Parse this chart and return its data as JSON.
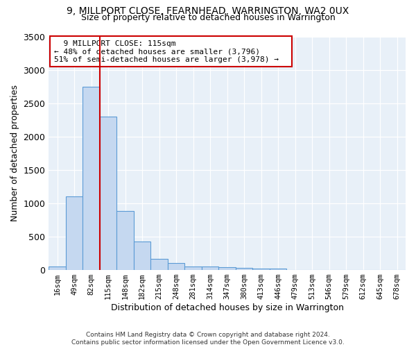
{
  "title1": "9, MILLPORT CLOSE, FEARNHEAD, WARRINGTON, WA2 0UX",
  "title2": "Size of property relative to detached houses in Warrington",
  "xlabel": "Distribution of detached houses by size in Warrington",
  "ylabel": "Number of detached properties",
  "categories": [
    "16sqm",
    "49sqm",
    "82sqm",
    "115sqm",
    "148sqm",
    "182sqm",
    "215sqm",
    "248sqm",
    "281sqm",
    "314sqm",
    "347sqm",
    "380sqm",
    "413sqm",
    "446sqm",
    "479sqm",
    "513sqm",
    "546sqm",
    "579sqm",
    "612sqm",
    "645sqm",
    "678sqm"
  ],
  "values": [
    50,
    1100,
    2750,
    2300,
    880,
    430,
    170,
    100,
    55,
    50,
    40,
    30,
    25,
    20,
    5,
    5,
    4,
    3,
    3,
    3,
    3
  ],
  "bar_color": "#c5d8f0",
  "bar_edge_color": "#5b9bd5",
  "red_line_x": 2.5,
  "annotation_title": "9 MILLPORT CLOSE: 115sqm",
  "annotation_line1": "← 48% of detached houses are smaller (3,796)",
  "annotation_line2": "51% of semi-detached houses are larger (3,978) →",
  "vline_color": "#cc0000",
  "annotation_box_edge": "#cc0000",
  "background_color": "#e8f0f8",
  "footer1": "Contains HM Land Registry data © Crown copyright and database right 2024.",
  "footer2": "Contains public sector information licensed under the Open Government Licence v3.0.",
  "ylim": [
    0,
    3500
  ],
  "yticks": [
    0,
    500,
    1000,
    1500,
    2000,
    2500,
    3000,
    3500
  ]
}
